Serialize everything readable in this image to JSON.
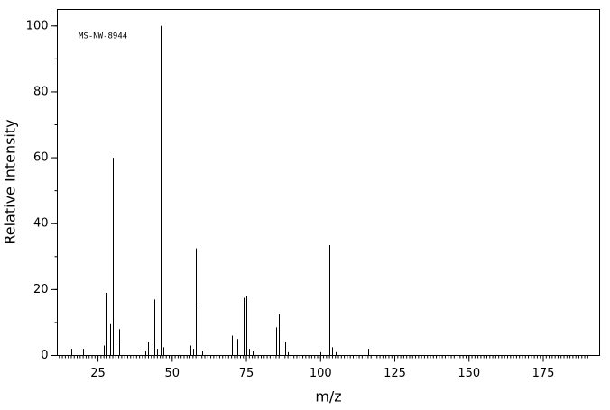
{
  "chart_data": {
    "type": "bar",
    "annotation": "MS-NW-8944",
    "xlabel": "m/z",
    "ylabel": "Relative Intensity",
    "x": [
      16,
      20,
      27,
      28,
      29,
      30,
      31,
      32,
      40,
      41,
      42,
      43,
      44,
      45,
      46,
      47,
      56,
      57,
      58,
      59,
      60,
      70,
      72,
      74,
      75,
      76,
      77,
      85,
      86,
      88,
      89,
      100,
      103,
      104,
      105,
      116
    ],
    "values": [
      2,
      2,
      3,
      19,
      9.5,
      60,
      3.5,
      8,
      2,
      1.5,
      4,
      3.5,
      17,
      2,
      100,
      2.5,
      3,
      2,
      32.5,
      14,
      1.5,
      6,
      5,
      17.5,
      18,
      2,
      1.5,
      8.5,
      12.5,
      4,
      1,
      1,
      33.5,
      2.5,
      1,
      2
    ],
    "color": "#000000",
    "xlim": [
      11.3,
      194
    ],
    "xticks": [
      25,
      50,
      75,
      100,
      125,
      150,
      175
    ],
    "ylim": [
      0,
      105
    ],
    "yticks": [
      0,
      20,
      40,
      60,
      80,
      100
    ]
  }
}
